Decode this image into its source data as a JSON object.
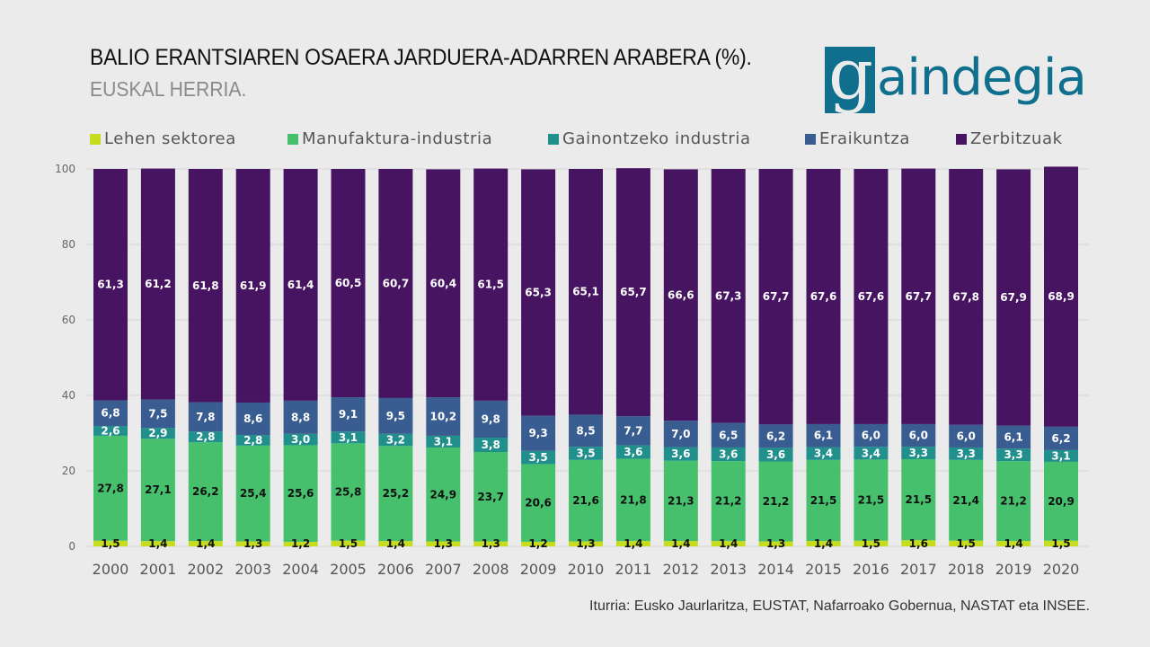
{
  "header": {
    "title": "BALIO ERANTSIAREN OSAERA JARDUERA-ADARREN ARABERA (%).",
    "subtitle": "EUSKAL HERRIA.",
    "logo_initial": "g",
    "logo_text": "aindegia"
  },
  "footer": {
    "source": "Iturria: Eusko Jaurlaritza, EUSTAT, Nafarroako Gobernua, NASTAT eta INSEE."
  },
  "colors": {
    "brand": "#0f6f8d",
    "background": "#ebebeb"
  },
  "chart_data": {
    "type": "bar",
    "stacked": true,
    "title": "BALIO ERANTSIAREN OSAERA JARDUERA-ADARREN ARABERA (%).",
    "subtitle": "EUSKAL HERRIA.",
    "xlabel": "",
    "ylabel": "",
    "ylim": [
      0,
      100
    ],
    "yticks": [
      0,
      20,
      40,
      60,
      80,
      100
    ],
    "grid": true,
    "legend_position": "top",
    "categories": [
      "2000",
      "2001",
      "2002",
      "2003",
      "2004",
      "2005",
      "2006",
      "2007",
      "2008",
      "2009",
      "2010",
      "2011",
      "2012",
      "2013",
      "2014",
      "2015",
      "2016",
      "2017",
      "2018",
      "2019",
      "2020"
    ],
    "series": [
      {
        "name": "Lehen sektorea",
        "color": "#c8dc1e",
        "label_color": "#111111",
        "values": [
          1.5,
          1.4,
          1.4,
          1.3,
          1.2,
          1.5,
          1.4,
          1.3,
          1.3,
          1.2,
          1.3,
          1.4,
          1.4,
          1.4,
          1.3,
          1.4,
          1.5,
          1.6,
          1.5,
          1.4,
          1.5
        ],
        "labels": [
          "1,5",
          "1,4",
          "1,4",
          "1,3",
          "1,2",
          "1,5",
          "1,4",
          "1,3",
          "1,3",
          "1,2",
          "1,3",
          "1,4",
          "1,4",
          "1,4",
          "1,3",
          "1,4",
          "1,5",
          "1,6",
          "1,5",
          "1,4",
          "1,5"
        ]
      },
      {
        "name": "Manufaktura-industria",
        "color": "#47c06e",
        "label_color": "#111111",
        "values": [
          27.8,
          27.1,
          26.2,
          25.4,
          25.6,
          25.8,
          25.2,
          24.9,
          23.7,
          20.6,
          21.6,
          21.8,
          21.3,
          21.2,
          21.2,
          21.5,
          21.5,
          21.5,
          21.4,
          21.2,
          20.9
        ],
        "labels": [
          "27,8",
          "27,1",
          "26,2",
          "25,4",
          "25,6",
          "25,8",
          "25,2",
          "24,9",
          "23,7",
          "20,6",
          "21,6",
          "21,8",
          "21,3",
          "21,2",
          "21,2",
          "21,5",
          "21,5",
          "21,5",
          "21,4",
          "21,2",
          "20,9"
        ]
      },
      {
        "name": "Gainontzeko industria",
        "color": "#21908d",
        "label_color": "#ffffff",
        "values": [
          2.6,
          2.9,
          2.8,
          2.8,
          3.0,
          3.1,
          3.2,
          3.1,
          3.8,
          3.5,
          3.5,
          3.6,
          3.6,
          3.6,
          3.6,
          3.4,
          3.4,
          3.3,
          3.3,
          3.3,
          3.1
        ],
        "labels": [
          "2,6",
          "2,9",
          "2,8",
          "2,8",
          "3,0",
          "3,1",
          "3,2",
          "3,1",
          "3,8",
          "3,5",
          "3,5",
          "3,6",
          "3,6",
          "3,6",
          "3,6",
          "3,4",
          "3,4",
          "3,3",
          "3,3",
          "3,3",
          "3,1"
        ]
      },
      {
        "name": "Eraikuntza",
        "color": "#3a5d91",
        "label_color": "#ffffff",
        "values": [
          6.8,
          7.5,
          7.8,
          8.6,
          8.8,
          9.1,
          9.5,
          10.2,
          9.8,
          9.3,
          8.5,
          7.7,
          7.0,
          6.5,
          6.2,
          6.1,
          6.0,
          6.0,
          6.0,
          6.1,
          6.2
        ],
        "labels": [
          "6,8",
          "7,5",
          "7,8",
          "8,6",
          "8,8",
          "9,1",
          "9,5",
          "10,2",
          "9,8",
          "9,3",
          "8,5",
          "7,7",
          "7,0",
          "6,5",
          "6,2",
          "6,1",
          "6,0",
          "6,0",
          "6,0",
          "6,1",
          "6,2"
        ]
      },
      {
        "name": "Zerbitzuak",
        "color": "#461461",
        "label_color": "#ffffff",
        "values": [
          61.3,
          61.2,
          61.8,
          61.9,
          61.4,
          60.5,
          60.7,
          60.4,
          61.5,
          65.3,
          65.1,
          65.7,
          66.6,
          67.3,
          67.7,
          67.6,
          67.6,
          67.7,
          67.8,
          67.9,
          68.9
        ],
        "labels": [
          "61,3",
          "61,2",
          "61,8",
          "61,9",
          "61,4",
          "60,5",
          "60,7",
          "60,4",
          "61,5",
          "65,3",
          "65,1",
          "65,7",
          "66,6",
          "67,3",
          "67,7",
          "67,6",
          "67,6",
          "67,7",
          "67,8",
          "67,9",
          "68,9"
        ]
      }
    ]
  }
}
